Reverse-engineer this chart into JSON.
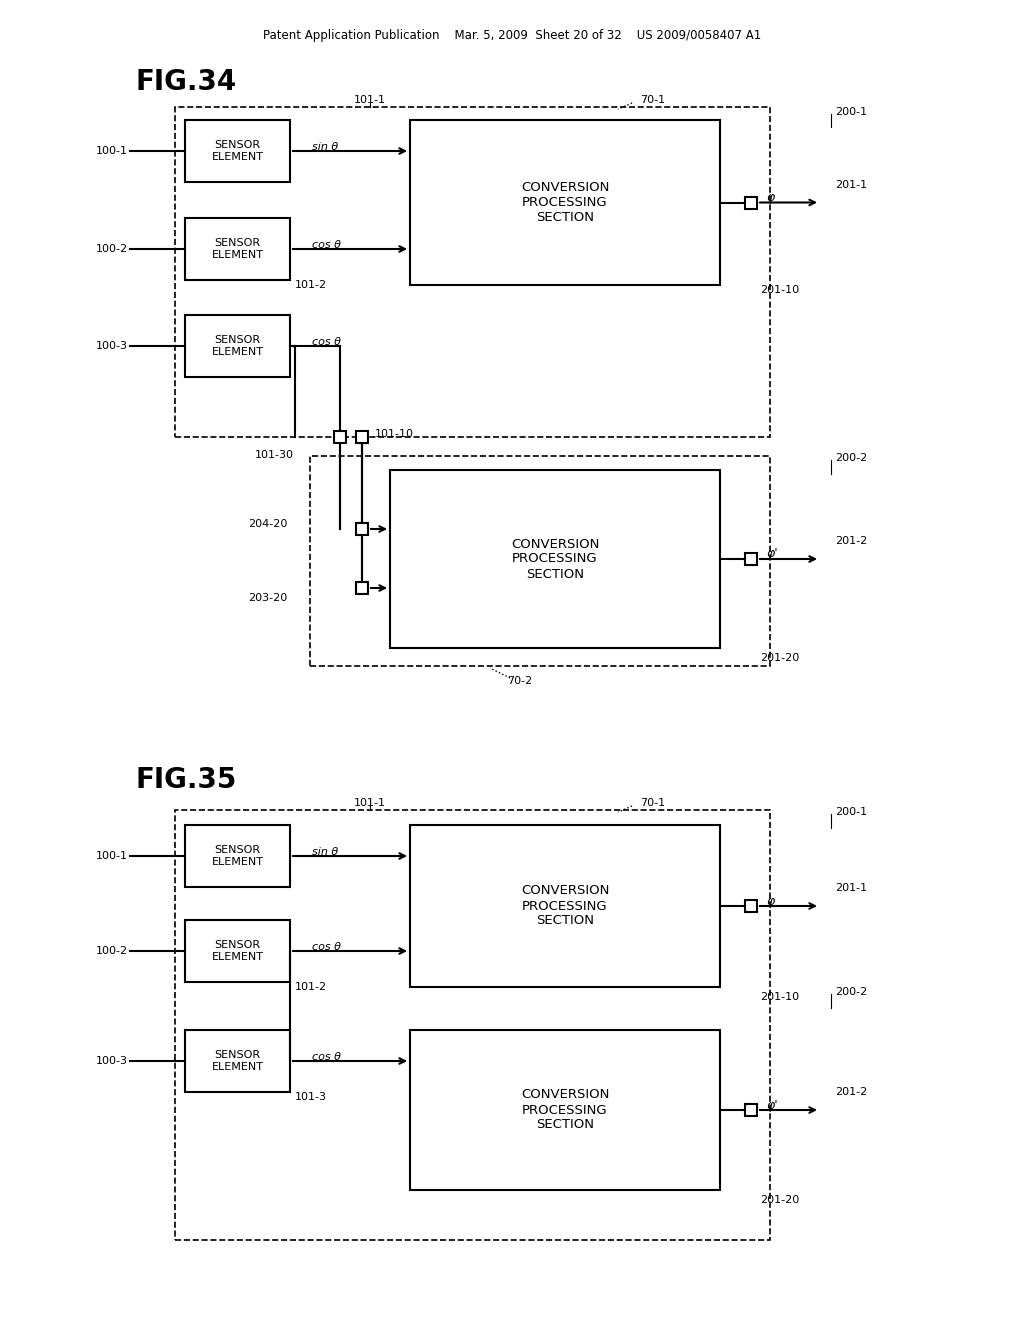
{
  "bg_color": "#ffffff",
  "header": "Patent Application Publication    Mar. 5, 2009  Sheet 20 of 32    US 2009/0058407 A1",
  "fig34_title": "FIG.34",
  "fig35_title": "FIG.35"
}
